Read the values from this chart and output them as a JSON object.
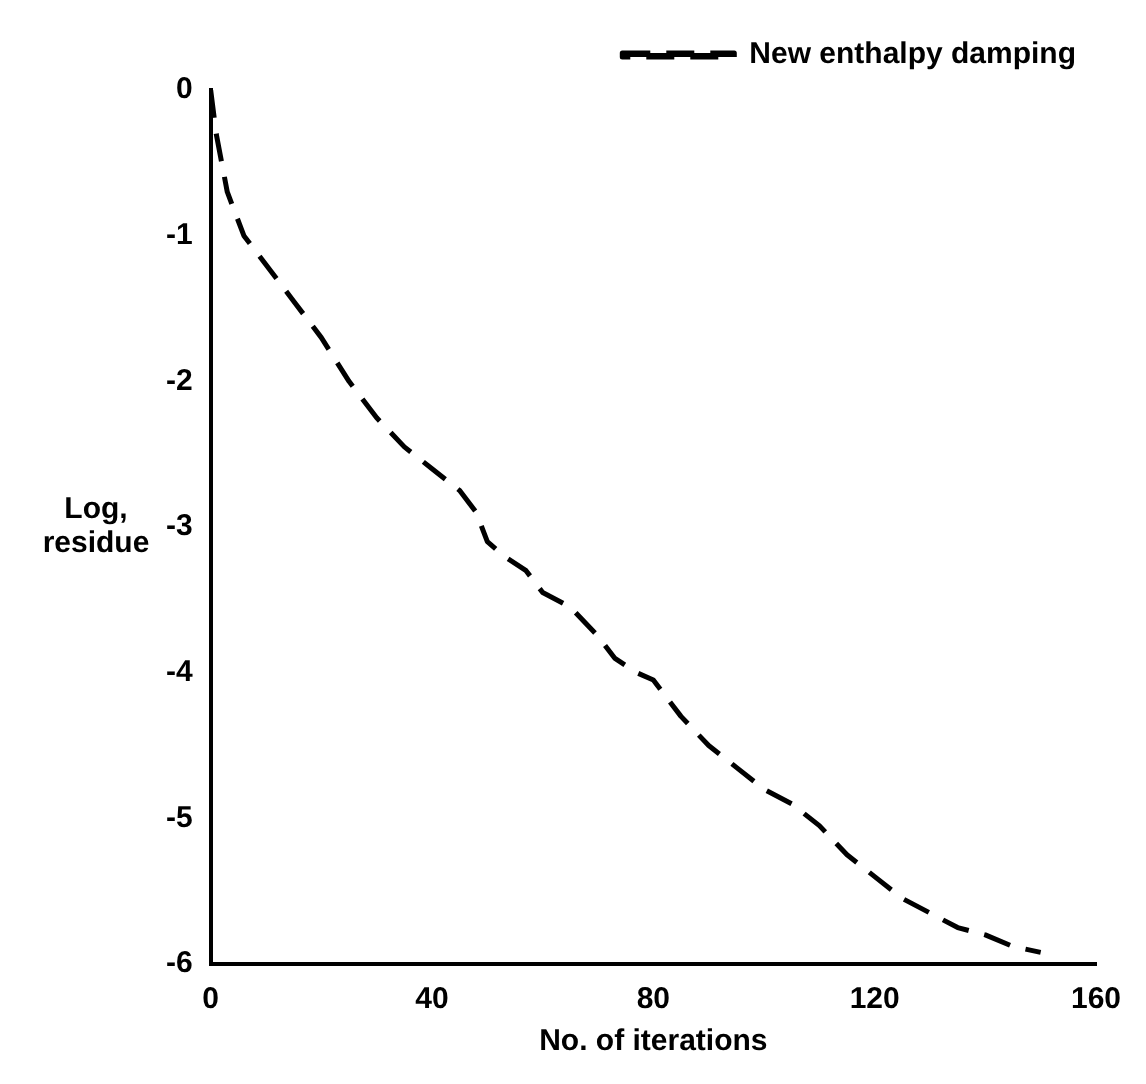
{
  "chart_data": {
    "type": "line",
    "xlabel": "No. of iterations",
    "ylabel": "Log,\nresidue",
    "xlim": [
      0,
      160
    ],
    "xticks": [
      0,
      40,
      80,
      120,
      160
    ],
    "ylim": [
      -6,
      0
    ],
    "yticks": [
      0,
      -1,
      -2,
      -3,
      -4,
      -5,
      -6
    ],
    "grid": false,
    "legend": "top right",
    "line_style": "dashed",
    "marker": "none",
    "series": [
      {
        "name": "New enthalpy damping",
        "color": "#000000",
        "x": [
          0,
          1,
          3,
          6,
          10,
          15,
          20,
          25,
          30,
          35,
          40,
          45,
          48,
          50,
          53,
          57,
          60,
          65,
          70,
          73,
          77,
          80,
          85,
          90,
          95,
          100,
          105,
          110,
          115,
          120,
          125,
          130,
          135,
          140,
          145,
          150
        ],
        "values": [
          0,
          -0.3,
          -0.7,
          -1.0,
          -1.2,
          -1.45,
          -1.7,
          -2.0,
          -2.25,
          -2.45,
          -2.6,
          -2.75,
          -2.9,
          -3.1,
          -3.2,
          -3.3,
          -3.45,
          -3.55,
          -3.75,
          -3.9,
          -4.0,
          -4.05,
          -4.3,
          -4.5,
          -4.65,
          -4.8,
          -4.9,
          -5.05,
          -5.25,
          -5.4,
          -5.55,
          -5.65,
          -5.75,
          -5.8,
          -5.88,
          -5.92
        ]
      }
    ]
  }
}
